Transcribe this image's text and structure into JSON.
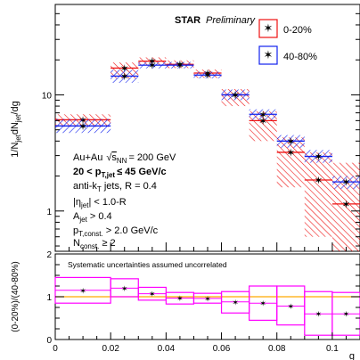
{
  "chart_data": [
    {
      "type": "scatter",
      "panel": "main",
      "title": "STAR Preliminary",
      "xlabel": "g",
      "ylabel": "1/N_jet dN_jet/dg",
      "yscale": "log",
      "ylim": [
        0.45,
        60
      ],
      "xlim": [
        0,
        0.11
      ],
      "bin_edges": [
        0,
        0.02,
        0.03,
        0.04,
        0.05,
        0.06,
        0.07,
        0.08,
        0.09,
        0.1,
        0.11
      ],
      "series": [
        {
          "name": "0-20%",
          "color": "#ee1111",
          "marker": "star",
          "values": [
            6.1,
            17.0,
            19.5,
            18.3,
            15.4,
            10.0,
            6.0,
            3.2,
            1.85,
            1.15
          ],
          "syst_low": [
            5.3,
            13.8,
            17.8,
            17.0,
            14.0,
            8.0,
            4.0,
            1.6,
            0.6,
            0.45
          ],
          "syst_high": [
            6.8,
            19.0,
            21.0,
            19.8,
            16.5,
            11.2,
            7.2,
            4.3,
            3.2,
            2.6
          ]
        },
        {
          "name": "40-80%",
          "color": "#1122ee",
          "marker": "star",
          "values": [
            5.4,
            14.5,
            18.0,
            18.0,
            14.8,
            10.0,
            6.8,
            4.0,
            2.95,
            1.78
          ],
          "syst_low": [
            4.7,
            12.7,
            16.9,
            16.9,
            13.9,
            9.0,
            6.1,
            3.5,
            2.6,
            1.55
          ],
          "syst_high": [
            6.2,
            16.4,
            19.2,
            19.2,
            15.8,
            11.1,
            7.5,
            4.5,
            3.35,
            2.0
          ]
        }
      ],
      "annotations": [
        "Au+Au √s_NN = 200 GeV",
        "20 < p_T,jet ≤ 45 GeV/c",
        "anti-k_T jets, R = 0.4",
        "|η_jet| < 1.0-R",
        "A_jet > 0.4",
        "p_T,const. > 2.0 GeV/c",
        "N_const. ≥ 2"
      ],
      "yticks": [
        1,
        10
      ],
      "ytick_labels": [
        "1",
        "10"
      ],
      "legend_placement": "top-right",
      "grid": false
    },
    {
      "type": "scatter",
      "panel": "ratio",
      "ylabel": "(0-20%)/(40-80%)",
      "xlabel": "g",
      "ylim": [
        0,
        2
      ],
      "xlim": [
        0,
        0.11
      ],
      "reference_line": 1,
      "reference_color": "#ffaa00",
      "series": [
        {
          "name": "",
          "color": "#ff00ff",
          "marker": "star",
          "values": [
            1.15,
            1.2,
            1.07,
            0.97,
            0.96,
            0.88,
            0.85,
            0.78,
            0.6,
            0.6
          ],
          "syst_low": [
            0.85,
            1.0,
            0.92,
            0.83,
            0.85,
            0.62,
            0.45,
            0.34,
            0.1,
            0.1
          ],
          "syst_high": [
            1.45,
            1.42,
            1.22,
            1.1,
            1.08,
            1.12,
            1.25,
            1.25,
            1.12,
            1.1
          ]
        }
      ],
      "note": "Systematic uncertainties assumed uncorrelated",
      "note_color": "#ff2222",
      "yticks": [
        0,
        1,
        2
      ],
      "ytick_labels": [
        "0",
        "1",
        "2"
      ],
      "xticks": [
        0,
        0.02,
        0.04,
        0.06,
        0.08,
        0.1
      ],
      "xtick_labels": [
        "0",
        "0.02",
        "0.04",
        "0.06",
        "0.08",
        "0.1"
      ]
    }
  ],
  "legend": {
    "entries": [
      "0-20%",
      "40-80%"
    ]
  },
  "text": {
    "title": "STAR",
    "subtitle": "Preliminary",
    "xlabel": "g",
    "ylabel_main": "1/N",
    "ylabel_sub_jet": "jet",
    "ylabel_mid": "dN",
    "ylabel_sub_jet2": "jet",
    "ylabel_end": "/dg",
    "ylabel_ratio": "(0-20%)/(40-80%)",
    "note": "Systematic uncertainties assumed uncorrelated",
    "ann_auau": "Au+Au",
    "ann_sqrt": "s",
    "ann_nn": "NN",
    "ann_energy": "= 200 GeV",
    "ann_pt_lo": "20 < p",
    "ann_pt_sub": "T,jet",
    "ann_pt_hi": "≤ 45 GeV/c",
    "ann_antikt": "anti-k",
    "ann_antikt_sub": "T",
    "ann_antikt_rest": " jets, R = 0.4",
    "ann_eta": "|η",
    "ann_eta_sub": "jet",
    "ann_eta_rest": "| < 1.0-R",
    "ann_area": "A",
    "ann_area_sub": "jet",
    "ann_area_rest": " > 0.4",
    "ann_ptc": "p",
    "ann_ptc_sub": "T,const.",
    "ann_ptc_rest": " > 2.0 GeV/c",
    "ann_nc": "N",
    "ann_nc_sub": "const.",
    "ann_nc_rest": " ≥ 2"
  }
}
